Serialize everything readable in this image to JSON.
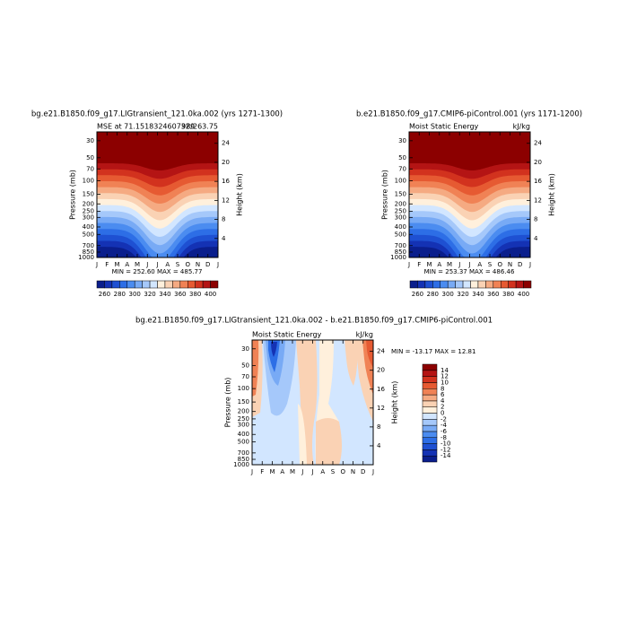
{
  "chart_data": [
    {
      "type": "contour",
      "title": "bg.e21.B1850.f09_g17.LIGtransient_121.0ka.002 (yrs 1271-1300)",
      "left_string": "MSE at 71.1518324607329",
      "right_string": "98/263.75",
      "annotation": "MIN = 252.60 MAX = 485.77",
      "categories": [
        "J",
        "F",
        "M",
        "A",
        "M",
        "J",
        "J",
        "A",
        "S",
        "O",
        "N",
        "D",
        "J"
      ],
      "ylabel": "Pressure (mb)",
      "ylog": true,
      "ylim": [
        1000,
        23
      ],
      "yticks": [
        30,
        50,
        70,
        100,
        150,
        200,
        250,
        300,
        400,
        500,
        700,
        850,
        1000
      ],
      "y2label": "Height (km)",
      "y2lim": [
        0,
        26.4
      ],
      "y2ticks": [
        4,
        8,
        12,
        16,
        20,
        24
      ],
      "colorbar": {
        "orientation": "horizontal",
        "lim": [
          250,
          410
        ],
        "ticks": [
          260,
          280,
          300,
          320,
          340,
          360,
          380,
          400
        ],
        "colors": [
          "#0a1e8c",
          "#1432b4",
          "#1e50d2",
          "#2d6ee6",
          "#4b8cf0",
          "#78aaf5",
          "#a5c8fa",
          "#d2e6ff",
          "#fff0dc",
          "#fad2b4",
          "#f5aa82",
          "#f08255",
          "#e65a32",
          "#d2321e",
          "#b41414",
          "#8c0000"
        ]
      }
    },
    {
      "type": "contour",
      "title": "b.e21.B1850.f09_g17.CMIP6-piControl.001 (yrs 1171-1200)",
      "left_string": "Moist Static Energy",
      "right_string": "kJ/kg",
      "annotation": "MIN = 253.37 MAX = 486.46",
      "categories": [
        "J",
        "F",
        "M",
        "A",
        "M",
        "J",
        "J",
        "A",
        "S",
        "O",
        "N",
        "D",
        "J"
      ],
      "ylabel": "Pressure (mb)",
      "ylog": true,
      "ylim": [
        1000,
        23
      ],
      "yticks": [
        30,
        50,
        70,
        100,
        150,
        200,
        250,
        300,
        400,
        500,
        700,
        850,
        1000
      ],
      "y2label": "Height (km)",
      "y2lim": [
        0,
        26.4
      ],
      "y2ticks": [
        4,
        8,
        12,
        16,
        20,
        24
      ],
      "colorbar": {
        "orientation": "horizontal",
        "lim": [
          250,
          410
        ],
        "ticks": [
          260,
          280,
          300,
          320,
          340,
          360,
          380,
          400
        ],
        "colors": [
          "#0a1e8c",
          "#1432b4",
          "#1e50d2",
          "#2d6ee6",
          "#4b8cf0",
          "#78aaf5",
          "#a5c8fa",
          "#d2e6ff",
          "#fff0dc",
          "#fad2b4",
          "#f5aa82",
          "#f08255",
          "#e65a32",
          "#d2321e",
          "#b41414",
          "#8c0000"
        ]
      }
    },
    {
      "type": "contour-diff",
      "title": "bg.e21.B1850.f09_g17.LIGtransient_121.0ka.002 - b.e21.B1850.f09_g17.CMIP6-piControl.001",
      "left_string": "Moist Static Energy",
      "right_string": "kJ/kg",
      "annotation": "MIN = -13.17 MAX =  12.81",
      "categories": [
        "J",
        "F",
        "M",
        "A",
        "M",
        "J",
        "J",
        "A",
        "S",
        "O",
        "N",
        "D",
        "J"
      ],
      "ylabel": "Pressure (mb)",
      "ylog": true,
      "ylim": [
        1000,
        23
      ],
      "yticks": [
        30,
        50,
        70,
        100,
        150,
        200,
        250,
        300,
        400,
        500,
        700,
        850,
        1000
      ],
      "y2label": "Height (km)",
      "y2lim": [
        0,
        26.4
      ],
      "y2ticks": [
        4,
        8,
        12,
        16,
        20,
        24
      ],
      "colorbar": {
        "orientation": "vertical",
        "lim": [
          -16,
          16
        ],
        "ticks": [
          -14,
          -12,
          -10,
          -8,
          -6,
          -4,
          -2,
          0,
          2,
          4,
          6,
          8,
          10,
          12,
          14
        ],
        "colors": [
          "#0a1e8c",
          "#1432b4",
          "#1e50d2",
          "#2d6ee6",
          "#4b8cf0",
          "#78aaf5",
          "#a5c8fa",
          "#d2e6ff",
          "#fff0dc",
          "#fad2b4",
          "#f5aa82",
          "#f08255",
          "#e65a32",
          "#d2321e",
          "#b41414",
          "#8c0000"
        ]
      }
    }
  ]
}
